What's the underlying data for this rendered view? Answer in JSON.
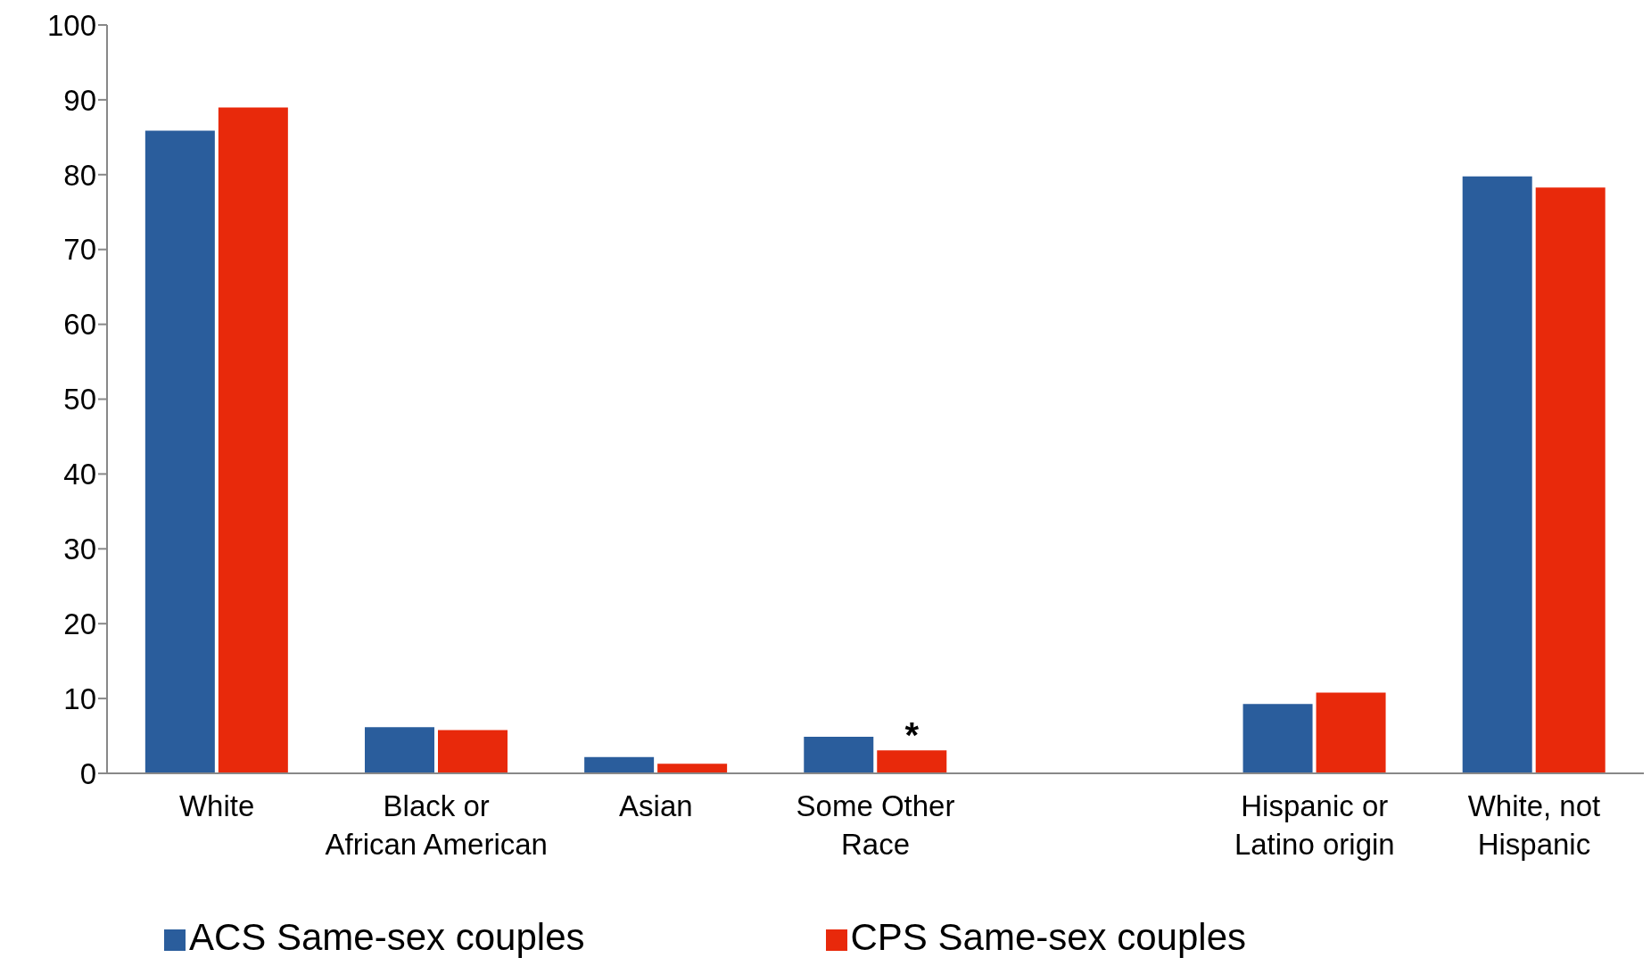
{
  "chart_data": {
    "type": "bar",
    "categories": [
      "White",
      "Black or African American",
      "Asian",
      "Some Other Race",
      null,
      "Hispanic or Latino origin",
      "White, not Hispanic"
    ],
    "series": [
      {
        "name": "ACS Same-sex couples",
        "color": "#2a5d9c",
        "values": [
          86.0,
          6.3,
          2.3,
          5.0,
          null,
          9.4,
          79.9
        ]
      },
      {
        "name": "CPS Same-sex couples",
        "color": "#e8290b",
        "values": [
          89.1,
          5.9,
          1.4,
          3.2,
          null,
          10.9,
          78.4
        ]
      }
    ],
    "ylim": [
      0,
      100
    ],
    "yticks": [
      0,
      10,
      20,
      30,
      40,
      50,
      60,
      70,
      80,
      90,
      100
    ],
    "grid": false,
    "legend": "bottom",
    "annotations": [
      {
        "text": "*",
        "x": "Some Other Race",
        "y": 3.2
      }
    ]
  }
}
